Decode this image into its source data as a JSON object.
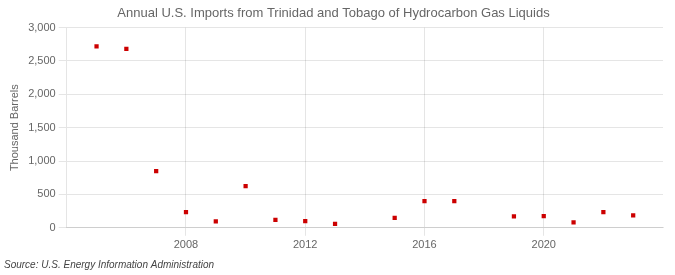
{
  "chart_data": {
    "type": "scatter",
    "title": "Annual U.S. Imports from Trinidad and Tobago of Hydrocarbon Gas Liquids",
    "ylabel": "Thousand Barrels",
    "annotation": "Source: U.S. Energy Information Administration",
    "x": [
      2005,
      2006,
      2007,
      2008,
      2009,
      2010,
      2011,
      2012,
      2013,
      2015,
      2016,
      2017,
      2019,
      2020,
      2021,
      2022,
      2023
    ],
    "values": [
      2720,
      2680,
      850,
      235,
      95,
      625,
      120,
      100,
      60,
      150,
      400,
      400,
      170,
      175,
      80,
      235,
      185
    ],
    "color": "#cc0000",
    "marker": "square",
    "xlim": [
      2004,
      2024
    ],
    "xticks": [
      2008,
      2012,
      2016,
      2020
    ],
    "ylim": [
      0,
      3000
    ],
    "yticks": [
      0,
      500,
      {
        "value": 1000,
        "label": "1,000"
      },
      {
        "value": 1500,
        "label": "1,500"
      },
      {
        "value": 2000,
        "label": "2,000"
      },
      {
        "value": 2500,
        "label": "2,500"
      },
      {
        "value": 3000,
        "label": "3,000"
      }
    ],
    "grid": true
  }
}
